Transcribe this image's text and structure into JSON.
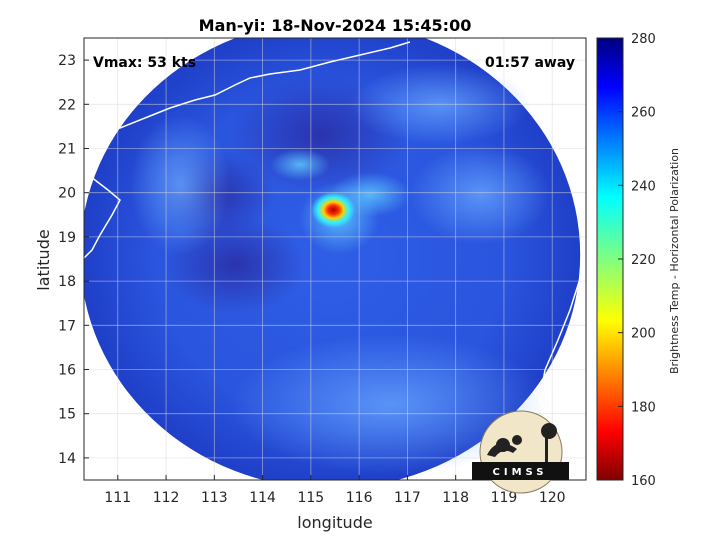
{
  "chart_data": {
    "type": "heatmap",
    "title": "Man-yi: 18-Nov-2024 15:45:00",
    "xlabel": "longitude",
    "ylabel": "latitude",
    "xlim": [
      110.3,
      120.7
    ],
    "ylim": [
      13.5,
      23.5
    ],
    "xticks": [
      111,
      112,
      113,
      114,
      115,
      116,
      117,
      118,
      119,
      120
    ],
    "yticks": [
      14,
      15,
      16,
      17,
      18,
      19,
      20,
      21,
      22,
      23
    ],
    "grid": true,
    "colorbar": {
      "label": "Brightness Temp - Horizontal Polarization",
      "range": [
        160,
        280
      ],
      "ticks": [
        160,
        180,
        200,
        220,
        240,
        260,
        280
      ],
      "colormap": "jet"
    },
    "annotations": {
      "vmax": "Vmax: 53 kts",
      "time_offset": "01:57 away"
    },
    "storm_center": {
      "lon": 115.3,
      "lat": 19.7
    },
    "swath_center": {
      "lon": 115.4,
      "lat": 18.6
    },
    "min_brightness_temp_approx": 170
  },
  "logo": {
    "text": "CIMSS"
  },
  "colors": {
    "background_scene": "#2a4fd8",
    "outside_swath": "#ffffff",
    "coastline": "#ffffff",
    "grid": "#d9d9d9"
  }
}
